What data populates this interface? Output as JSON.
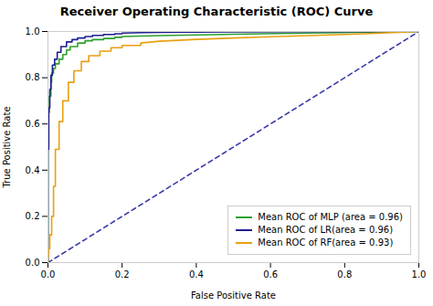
{
  "chart_data": {
    "type": "line",
    "title": "Receiver Operating Characteristic (ROC) Curve",
    "xlabel": "False Positive Rate",
    "ylabel": "True Positive Rate",
    "xlim": [
      0.0,
      1.0
    ],
    "ylim": [
      0.0,
      1.0
    ],
    "xticks": [
      {
        "value": 0.0,
        "label": "0.0"
      },
      0.2,
      0.4,
      0.6,
      0.8,
      {
        "value": 1.0,
        "label": "1.0"
      }
    ],
    "yticks": [
      {
        "value": 0.0,
        "label": "0.0"
      },
      0.2,
      0.4,
      0.6,
      0.8,
      {
        "value": 1.0,
        "label": "1.0"
      }
    ],
    "grid": false,
    "legend": "lower right",
    "series": [
      {
        "color": "#3a3aaa",
        "line_style": "dashed",
        "x": [
          0,
          1
        ],
        "values": [
          0,
          1
        ]
      },
      {
        "name": "Mean ROC of MLP (area = 0.96)",
        "color": "#2ca02c",
        "x": [
          0.0,
          0.0,
          0.002,
          0.002,
          0.004,
          0.004,
          0.008,
          0.008,
          0.01,
          0.01,
          0.015,
          0.015,
          0.02,
          0.02,
          0.03,
          0.03,
          0.04,
          0.04,
          0.05,
          0.05,
          0.06,
          0.06,
          0.08,
          0.08,
          0.1,
          0.1,
          0.12,
          0.12,
          0.15,
          0.15,
          0.18,
          0.18,
          0.2,
          0.2,
          0.25,
          0.3,
          0.4,
          0.5,
          0.7,
          1.0
        ],
        "values": [
          0.0,
          0.5,
          0.5,
          0.65,
          0.65,
          0.72,
          0.72,
          0.78,
          0.78,
          0.82,
          0.82,
          0.84,
          0.84,
          0.86,
          0.86,
          0.88,
          0.88,
          0.9,
          0.9,
          0.92,
          0.92,
          0.935,
          0.935,
          0.95,
          0.95,
          0.96,
          0.96,
          0.965,
          0.965,
          0.97,
          0.97,
          0.975,
          0.975,
          0.978,
          0.98,
          0.982,
          0.985,
          0.988,
          0.993,
          1.0
        ]
      },
      {
        "name": "Mean ROC of LR(area = 0.96)",
        "color": "#1f1f8f",
        "x": [
          0.0,
          0.0,
          0.002,
          0.002,
          0.005,
          0.005,
          0.008,
          0.008,
          0.012,
          0.012,
          0.018,
          0.018,
          0.025,
          0.025,
          0.035,
          0.035,
          0.05,
          0.05,
          0.065,
          0.065,
          0.08,
          0.08,
          0.1,
          0.1,
          0.12,
          0.12,
          0.15,
          0.15,
          0.18,
          0.18,
          0.2,
          0.2,
          0.25,
          0.3,
          0.4,
          0.5,
          0.7,
          1.0
        ],
        "values": [
          0.0,
          0.49,
          0.49,
          0.67,
          0.67,
          0.75,
          0.75,
          0.81,
          0.81,
          0.855,
          0.855,
          0.88,
          0.88,
          0.91,
          0.91,
          0.935,
          0.935,
          0.955,
          0.955,
          0.965,
          0.965,
          0.972,
          0.972,
          0.978,
          0.978,
          0.983,
          0.983,
          0.987,
          0.987,
          0.99,
          0.99,
          0.993,
          0.995,
          0.996,
          0.997,
          0.998,
          0.999,
          1.0
        ]
      },
      {
        "name": "Mean ROC of RF(area = 0.93)",
        "color": "#e8a010",
        "x": [
          0.0,
          0.0,
          0.002,
          0.002,
          0.005,
          0.005,
          0.01,
          0.01,
          0.015,
          0.015,
          0.02,
          0.02,
          0.03,
          0.03,
          0.04,
          0.04,
          0.055,
          0.055,
          0.07,
          0.07,
          0.09,
          0.09,
          0.11,
          0.11,
          0.14,
          0.14,
          0.17,
          0.17,
          0.2,
          0.2,
          0.25,
          0.25,
          0.3,
          0.4,
          0.5,
          0.6,
          0.7,
          0.8,
          0.9,
          1.0
        ],
        "values": [
          0.0,
          0.03,
          0.03,
          0.06,
          0.06,
          0.12,
          0.12,
          0.2,
          0.2,
          0.33,
          0.33,
          0.49,
          0.49,
          0.61,
          0.61,
          0.7,
          0.7,
          0.78,
          0.78,
          0.83,
          0.83,
          0.87,
          0.87,
          0.895,
          0.895,
          0.915,
          0.915,
          0.93,
          0.93,
          0.94,
          0.94,
          0.95,
          0.958,
          0.966,
          0.972,
          0.977,
          0.982,
          0.987,
          0.993,
          1.0
        ]
      }
    ]
  }
}
